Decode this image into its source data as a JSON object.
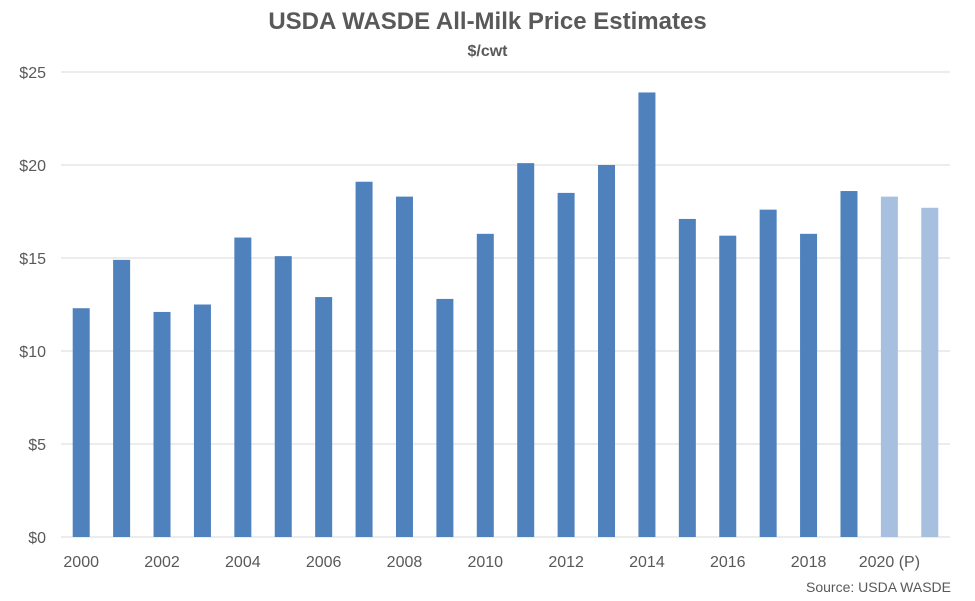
{
  "chart_data": {
    "type": "bar",
    "title": "USDA WASDE All-Milk Price Estimates",
    "subtitle": "$/cwt",
    "source": "Source: USDA WASDE",
    "xlabel": "",
    "ylabel": "",
    "ylim": [
      0,
      25
    ],
    "y_ticks": [
      0,
      5,
      10,
      15,
      20,
      25
    ],
    "y_tick_labels": [
      "$0",
      "$5",
      "$10",
      "$15",
      "$20",
      "$25"
    ],
    "grid": true,
    "legend": "none",
    "categories": [
      "2000",
      "2001",
      "2002",
      "2003",
      "2004",
      "2005",
      "2006",
      "2007",
      "2008",
      "2009",
      "2010",
      "2011",
      "2012",
      "2013",
      "2014",
      "2015",
      "2016",
      "2017",
      "2018",
      "2019",
      "2020",
      "2021"
    ],
    "x_tick_labels": [
      "2000",
      "",
      "2002",
      "",
      "2004",
      "",
      "2006",
      "",
      "2008",
      "",
      "2010",
      "",
      "2012",
      "",
      "2014",
      "",
      "2016",
      "",
      "2018",
      "",
      "2020 (P)",
      ""
    ],
    "values": [
      12.3,
      14.9,
      12.1,
      12.5,
      16.1,
      15.1,
      12.9,
      19.1,
      18.3,
      12.8,
      16.3,
      20.1,
      18.5,
      20.0,
      23.9,
      17.1,
      16.2,
      17.6,
      16.3,
      18.6,
      18.3,
      17.7
    ],
    "projected": [
      false,
      false,
      false,
      false,
      false,
      false,
      false,
      false,
      false,
      false,
      false,
      false,
      false,
      false,
      false,
      false,
      false,
      false,
      false,
      false,
      true,
      true
    ],
    "colors": {
      "bar": "#4f81bd",
      "bar_projected": "#a7c0df",
      "grid": "#d9d9d9",
      "text": "#595959"
    }
  }
}
